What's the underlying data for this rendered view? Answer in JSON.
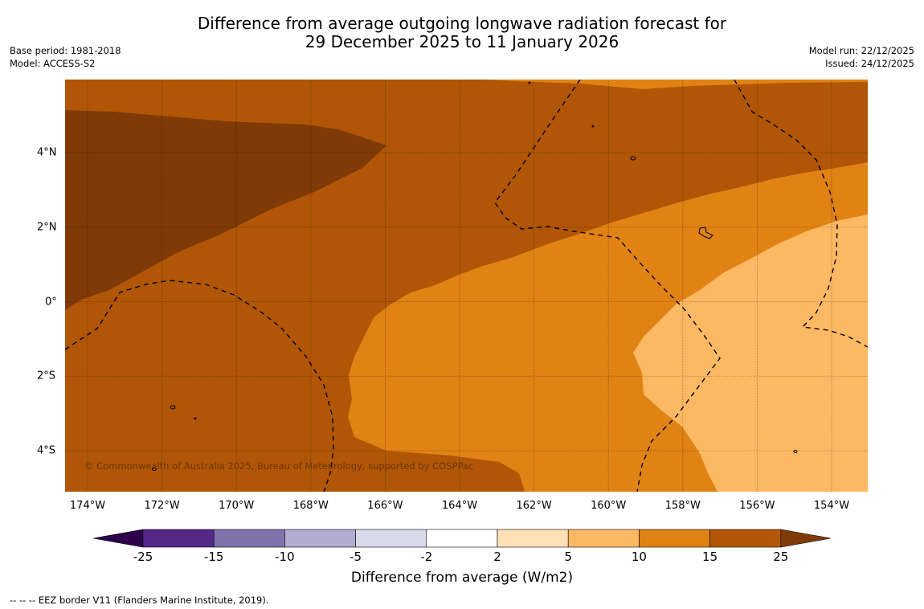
{
  "title": {
    "line1": "Difference from average outgoing longwave radiation forecast for",
    "line2": "29 December 2025 to 11 January 2026"
  },
  "meta": {
    "base_period": "Base period: 1981-2018",
    "model": "Model: ACCESS-S2",
    "model_run": "Model run: 22/12/2025",
    "issued": "Issued: 24/12/2025"
  },
  "map": {
    "copyright": "© Commonwealth of Australia 2025, Bureau of Meteorology, supported by COSPPac",
    "x_ticks": [
      "174°W",
      "172°W",
      "170°W",
      "168°W",
      "166°W",
      "164°W",
      "162°W",
      "160°W",
      "158°W",
      "156°W",
      "154°W"
    ],
    "y_ticks": [
      "4°N",
      "2°N",
      "0°",
      "2°S",
      "4°S"
    ],
    "region_colors": {
      "15_25": "#b05606",
      "25_plus": "#7f3a08",
      "10_15": "#e08214",
      "5_10": "#fdb863"
    }
  },
  "colorbar": {
    "title": "Difference from average (W/m2)",
    "labels": [
      "-25",
      "-15",
      "-10",
      "-5",
      "-2",
      "2",
      "5",
      "10",
      "15",
      "25"
    ],
    "colors": [
      "#542788",
      "#8073ac",
      "#b2abd2",
      "#d8daeb",
      "#ffffff",
      "#fee0b6",
      "#fdb863",
      "#e08214",
      "#b35806"
    ],
    "under_color": "#2d004b",
    "over_color": "#7f3b08"
  },
  "footer": {
    "legend_symbol": "--  --  --",
    "legend_text": "EEZ border V11 (Flanders Marine Institute, 2019)."
  }
}
